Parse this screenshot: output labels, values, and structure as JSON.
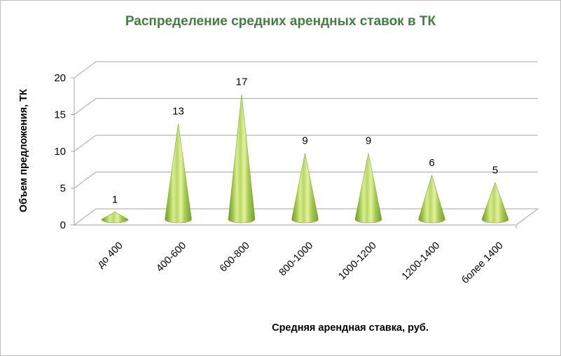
{
  "chart_data": {
    "type": "bar",
    "bar_shape": "cone",
    "title": "Распределение средних арендных ставок в ТК",
    "xlabel": "Средняя арендная ставка, руб.",
    "ylabel": "Объем предложения, ТК",
    "categories": [
      "до 400",
      "400-600",
      "600-800",
      "800-1000",
      "1000-1200",
      "1200-1400",
      "более 1400"
    ],
    "values": [
      1,
      13,
      17,
      9,
      9,
      6,
      5
    ],
    "ylim": [
      0,
      20
    ],
    "yticks": [
      "0",
      "5",
      "10",
      "15",
      "20"
    ],
    "grid": true,
    "legend": "none",
    "colors": {
      "title": "#3f7f3f",
      "cone_light": "#d6ec8a",
      "cone_mid": "#9cc24a",
      "cone_dark": "#6e9a2a",
      "grid": "#a6a6a6"
    }
  }
}
